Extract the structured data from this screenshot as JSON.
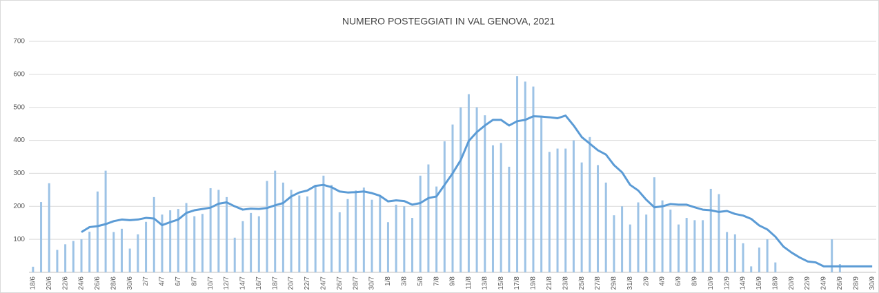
{
  "chart_data": {
    "type": "bar-line",
    "title": "NUMERO POSTEGGIATI IN VAL GENOVA, 2021",
    "categories": [
      "18/6",
      null,
      "20/6",
      null,
      "22/6",
      null,
      "24/6",
      null,
      "26/6",
      null,
      "28/6",
      null,
      "30/6",
      null,
      "2/7",
      null,
      "4/7",
      null,
      "6/7",
      null,
      "8/7",
      null,
      "10/7",
      null,
      "12/7",
      null,
      "14/7",
      null,
      "16/7",
      null,
      "18/7",
      null,
      "20/7",
      null,
      "22/7",
      null,
      "24/7",
      null,
      "26/7",
      null,
      "28/7",
      null,
      "30/7",
      null,
      "1/8",
      null,
      "3/8",
      null,
      "5/8",
      null,
      "7/8",
      null,
      "9/8",
      null,
      "11/8",
      null,
      "13/8",
      null,
      "15/8",
      null,
      "17/8",
      null,
      "19/8",
      null,
      "21/8",
      null,
      "23/8",
      null,
      "25/8",
      null,
      "27/8",
      null,
      "29/8",
      null,
      "31/8",
      null,
      "2/9",
      null,
      "4/9",
      null,
      "6/9",
      null,
      "8/9",
      null,
      "10/9",
      null,
      "12/9",
      null,
      "14/9",
      null,
      "16/9",
      null,
      "18/9",
      null,
      "20/9",
      null,
      "22/9",
      null,
      "24/9",
      null,
      "26/9",
      null,
      "28/9",
      null,
      "30/9"
    ],
    "series": [
      {
        "type": "bar",
        "color": "#9dc3e6",
        "values": [
          17,
          213,
          270,
          68,
          85,
          95,
          100,
          123,
          245,
          308,
          122,
          132,
          72,
          115,
          153,
          228,
          175,
          188,
          192,
          210,
          170,
          177,
          255,
          250,
          228,
          105,
          155,
          180,
          170,
          277,
          308,
          272,
          250,
          233,
          230,
          265,
          293,
          265,
          182,
          222,
          248,
          257,
          220,
          232,
          152,
          205,
          200,
          165,
          293,
          327,
          260,
          397,
          448,
          500,
          540,
          500,
          476,
          385,
          392,
          320,
          595,
          578,
          563,
          470,
          365,
          375,
          375,
          400,
          333,
          410,
          325,
          272,
          173,
          200,
          145,
          212,
          175,
          288,
          218,
          190,
          145,
          165,
          158,
          158,
          253,
          237,
          122,
          115,
          88,
          18,
          75,
          100,
          30,
          0,
          0,
          0,
          0,
          0,
          0,
          100,
          25,
          0,
          0,
          0,
          0
        ]
      },
      {
        "type": "line",
        "color": "#5b9bd5",
        "values": [
          null,
          null,
          null,
          null,
          null,
          null,
          122,
          137,
          140,
          146,
          155,
          160,
          158,
          160,
          165,
          163,
          143,
          152,
          160,
          180,
          188,
          192,
          196,
          208,
          212,
          200,
          190,
          193,
          192,
          195,
          203,
          210,
          230,
          242,
          248,
          262,
          265,
          258,
          245,
          242,
          243,
          245,
          240,
          232,
          215,
          218,
          216,
          205,
          210,
          225,
          230,
          265,
          300,
          340,
          398,
          425,
          445,
          462,
          462,
          445,
          458,
          462,
          473,
          472,
          470,
          467,
          475,
          445,
          410,
          390,
          370,
          357,
          325,
          303,
          265,
          248,
          220,
          197,
          200,
          207,
          205,
          205,
          197,
          190,
          188,
          183,
          186,
          177,
          172,
          162,
          142,
          130,
          108,
          78,
          60,
          45,
          33,
          30,
          18,
          18,
          18,
          18,
          18,
          18,
          18
        ]
      }
    ],
    "ylim": [
      0,
      700
    ],
    "yticks": [
      100,
      200,
      300,
      400,
      500,
      600,
      700
    ],
    "grid": true
  }
}
